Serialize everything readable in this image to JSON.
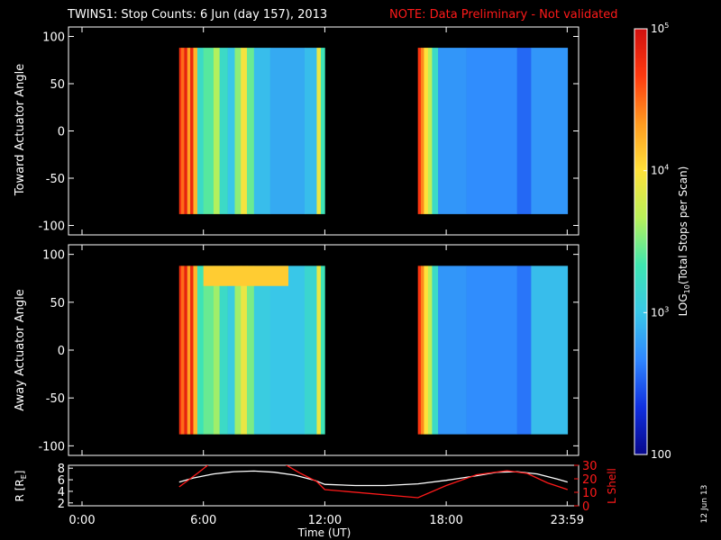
{
  "header": {
    "title": "TWINS1: Stop Counts:  6 Jun (day 157), 2013",
    "note": "NOTE: Data Preliminary - Not validated"
  },
  "stamp": "12 Jun 13",
  "colors": {
    "background": "#000000",
    "axes": "#ffffff",
    "note": "#ff1a1a",
    "r_line": "#ffffff",
    "lshell_line": "#ff1a1a",
    "colormap": [
      "#08088c",
      "#1030e0",
      "#2f86ff",
      "#39c7e8",
      "#3ee6b0",
      "#b8f05a",
      "#ffe13a",
      "#ff9a20",
      "#ff3a10",
      "#d01010"
    ]
  },
  "colorbar": {
    "label": "LOG10(Total Stops per Scan)",
    "label_base": "LOG",
    "label_sub": "10",
    "label_rest": "(Total Stops per Scan)",
    "scale": "log",
    "range": [
      100,
      100000
    ],
    "ticks": [
      {
        "value": 100,
        "label": "100"
      },
      {
        "value": 1000,
        "label": "10",
        "sup": "3"
      },
      {
        "value": 10000,
        "label": "10",
        "sup": "4"
      },
      {
        "value": 100000,
        "label": "10",
        "sup": "5"
      }
    ]
  },
  "chart_data": [
    {
      "type": "heatmap",
      "id": "toward",
      "ylabel": "Toward Actuator Angle",
      "ylim": [
        -110,
        110
      ],
      "yticks": [
        100,
        50,
        0,
        -50,
        -100
      ],
      "xlim_hours": [
        0,
        24
      ],
      "data_windows_hours": [
        [
          4.8,
          12.0
        ],
        [
          16.6,
          24.0
        ]
      ],
      "z_scale": "log10",
      "columns": [
        {
          "t0": 4.8,
          "t1": 4.9,
          "logz": 4.75
        },
        {
          "t0": 4.9,
          "t1": 5.05,
          "logz": 4.5
        },
        {
          "t0": 5.05,
          "t1": 5.2,
          "logz": 4.85
        },
        {
          "t0": 5.2,
          "t1": 5.35,
          "logz": 4.3
        },
        {
          "t0": 5.35,
          "t1": 5.5,
          "logz": 4.8
        },
        {
          "t0": 5.5,
          "t1": 5.7,
          "logz": 4.2
        },
        {
          "t0": 5.7,
          "t1": 6.0,
          "logz": 3.2
        },
        {
          "t0": 6.0,
          "t1": 6.5,
          "logz": 3.4
        },
        {
          "t0": 6.5,
          "t1": 6.8,
          "logz": 3.65
        },
        {
          "t0": 6.8,
          "t1": 7.2,
          "logz": 3.2
        },
        {
          "t0": 7.2,
          "t1": 7.55,
          "logz": 3.0
        },
        {
          "t0": 7.55,
          "t1": 7.85,
          "logz": 3.55
        },
        {
          "t0": 7.85,
          "t1": 8.15,
          "logz": 3.95
        },
        {
          "t0": 8.15,
          "t1": 8.5,
          "logz": 3.45
        },
        {
          "t0": 8.5,
          "t1": 9.3,
          "logz": 2.95
        },
        {
          "t0": 9.3,
          "t1": 11.0,
          "logz": 2.85
        },
        {
          "t0": 11.0,
          "t1": 11.6,
          "logz": 2.95
        },
        {
          "t0": 11.6,
          "t1": 11.8,
          "logz": 3.9
        },
        {
          "t0": 11.8,
          "t1": 12.0,
          "logz": 3.3
        },
        {
          "t0": 16.6,
          "t1": 16.75,
          "logz": 4.7
        },
        {
          "t0": 16.75,
          "t1": 16.9,
          "logz": 4.4
        },
        {
          "t0": 16.9,
          "t1": 17.1,
          "logz": 4.0
        },
        {
          "t0": 17.1,
          "t1": 17.3,
          "logz": 3.7
        },
        {
          "t0": 17.3,
          "t1": 17.6,
          "logz": 3.2
        },
        {
          "t0": 17.6,
          "t1": 19.0,
          "logz": 2.75
        },
        {
          "t0": 19.0,
          "t1": 21.5,
          "logz": 2.7
        },
        {
          "t0": 21.5,
          "t1": 22.2,
          "logz": 2.55
        },
        {
          "t0": 22.2,
          "t1": 24.0,
          "logz": 2.75
        }
      ],
      "angle_range": [
        -88,
        88
      ]
    },
    {
      "type": "heatmap",
      "id": "away",
      "ylabel": "Away Actuator Angle",
      "ylim": [
        -110,
        110
      ],
      "yticks": [
        100,
        50,
        0,
        -50,
        -100
      ],
      "xlim_hours": [
        0,
        24
      ],
      "data_windows_hours": [
        [
          4.8,
          12.0
        ],
        [
          16.6,
          24.0
        ]
      ],
      "z_scale": "log10",
      "columns": [
        {
          "t0": 4.8,
          "t1": 4.9,
          "logz": 4.75
        },
        {
          "t0": 4.9,
          "t1": 5.05,
          "logz": 4.5
        },
        {
          "t0": 5.05,
          "t1": 5.2,
          "logz": 4.85
        },
        {
          "t0": 5.2,
          "t1": 5.35,
          "logz": 4.3
        },
        {
          "t0": 5.35,
          "t1": 5.5,
          "logz": 4.8
        },
        {
          "t0": 5.5,
          "t1": 5.7,
          "logz": 4.2
        },
        {
          "t0": 5.7,
          "t1": 6.0,
          "logz": 3.3
        },
        {
          "t0": 6.0,
          "t1": 6.5,
          "logz": 3.45
        },
        {
          "t0": 6.5,
          "t1": 6.8,
          "logz": 3.6
        },
        {
          "t0": 6.8,
          "t1": 7.2,
          "logz": 3.2
        },
        {
          "t0": 7.2,
          "t1": 7.55,
          "logz": 3.05
        },
        {
          "t0": 7.55,
          "t1": 7.85,
          "logz": 3.6
        },
        {
          "t0": 7.85,
          "t1": 8.15,
          "logz": 3.9
        },
        {
          "t0": 8.15,
          "t1": 8.5,
          "logz": 3.5
        },
        {
          "t0": 8.5,
          "t1": 9.3,
          "logz": 3.05
        },
        {
          "t0": 9.3,
          "t1": 11.0,
          "logz": 3.0
        },
        {
          "t0": 11.0,
          "t1": 11.6,
          "logz": 3.15
        },
        {
          "t0": 11.6,
          "t1": 11.8,
          "logz": 3.9
        },
        {
          "t0": 11.8,
          "t1": 12.0,
          "logz": 3.3
        },
        {
          "t0": 16.6,
          "t1": 16.75,
          "logz": 4.7
        },
        {
          "t0": 16.75,
          "t1": 16.9,
          "logz": 4.4
        },
        {
          "t0": 16.9,
          "t1": 17.1,
          "logz": 4.0
        },
        {
          "t0": 17.1,
          "t1": 17.3,
          "logz": 3.7
        },
        {
          "t0": 17.3,
          "t1": 17.6,
          "logz": 3.2
        },
        {
          "t0": 17.6,
          "t1": 19.0,
          "logz": 2.75
        },
        {
          "t0": 19.0,
          "t1": 21.5,
          "logz": 2.7
        },
        {
          "t0": 21.5,
          "t1": 22.2,
          "logz": 2.6
        },
        {
          "t0": 22.2,
          "t1": 24.0,
          "logz": 2.95
        }
      ],
      "angle_range": [
        -88,
        88
      ],
      "band": {
        "angle0": 67,
        "angle1": 88,
        "t0": 6.0,
        "t1": 10.2,
        "logz": 4.1
      }
    },
    {
      "type": "line",
      "id": "orbit",
      "xlabel": "Time (UT)",
      "ylabel_left": "R [R",
      "ylabel_left_sub": "E",
      "ylabel_left_end": "]",
      "ylabel_right": "L Shell",
      "xlim_hours": [
        0,
        24.5
      ],
      "xticks": [
        {
          "hours": 0,
          "label": "0:00"
        },
        {
          "hours": 6,
          "label": "6:00"
        },
        {
          "hours": 12,
          "label": "12:00"
        },
        {
          "hours": 18,
          "label": "18:00"
        },
        {
          "hours": 23.98,
          "label": "23:59"
        }
      ],
      "ylim_left": [
        1.5,
        8.5
      ],
      "yticks_left": [
        2,
        4,
        6,
        8
      ],
      "ylim_right": [
        0,
        30
      ],
      "yticks_right": [
        0,
        10,
        20,
        30
      ],
      "series": [
        {
          "axis": "left",
          "x": [
            4.8,
            5.5,
            6.5,
            7.5,
            8.5,
            9.5,
            10.5,
            11.5,
            12.0,
            13.5,
            15.0,
            16.6,
            18.0,
            19.5,
            20.5,
            21.5,
            22.5,
            23.5,
            24.0
          ],
          "y": [
            5.6,
            6.3,
            7.0,
            7.4,
            7.5,
            7.3,
            6.8,
            5.9,
            5.2,
            5.0,
            5.0,
            5.3,
            5.9,
            6.7,
            7.3,
            7.4,
            7.0,
            6.1,
            5.6
          ]
        },
        {
          "axis": "right",
          "x": [
            4.8,
            5.7,
            6.3,
            10.0,
            10.8,
            11.6,
            12.0,
            16.6,
            18.0,
            19.5,
            21.0,
            22.0,
            23.0,
            24.0
          ],
          "y": [
            14,
            24,
            31,
            31,
            24,
            18,
            12,
            6,
            15,
            23,
            26,
            24,
            17,
            12
          ]
        }
      ]
    }
  ]
}
